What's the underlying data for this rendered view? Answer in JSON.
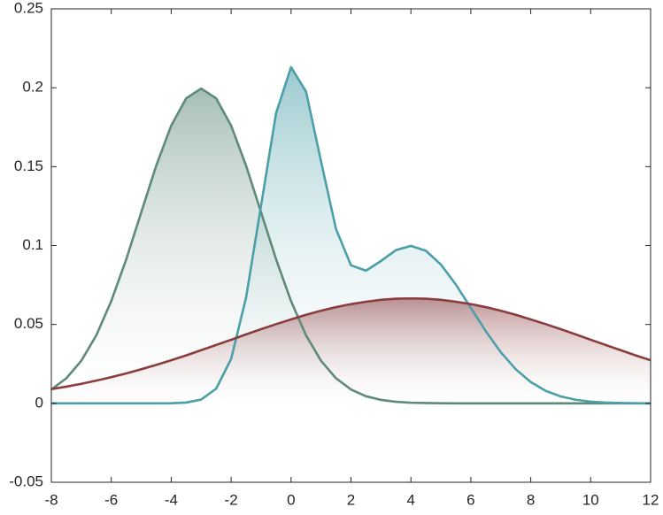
{
  "chart_data": {
    "type": "area",
    "x": [
      -8,
      -7.5,
      -7,
      -6.5,
      -6,
      -5.5,
      -5,
      -4.5,
      -4,
      -3.5,
      -3,
      -2.5,
      -2,
      -1.5,
      -1,
      -0.5,
      0,
      0.5,
      1,
      1.5,
      2,
      2.5,
      3,
      3.5,
      4,
      4.5,
      5,
      5.5,
      6,
      6.5,
      7,
      7.5,
      8,
      8.5,
      9,
      9.5,
      10,
      10.5,
      11,
      11.5,
      12
    ],
    "series": [
      {
        "color": "#5f8a78",
        "values": [
          0.0088,
          0.0159,
          0.027,
          0.0431,
          0.0648,
          0.0913,
          0.121,
          0.1506,
          0.176,
          0.1933,
          0.1995,
          0.1933,
          0.176,
          0.1506,
          0.121,
          0.0913,
          0.0648,
          0.0431,
          0.027,
          0.0159,
          0.0088,
          0.0045,
          0.0022,
          0.001,
          0.0004,
          0.0002,
          0.0001,
          0,
          0,
          0,
          0,
          0,
          0,
          0,
          0,
          0,
          0,
          0,
          0,
          0,
          0
        ]
      },
      {
        "color": "#4a9fa8",
        "values": [
          0,
          0,
          0,
          0,
          0,
          0,
          0,
          0,
          0.0001,
          0.0005,
          0.0024,
          0.0093,
          0.0281,
          0.0671,
          0.1254,
          0.1839,
          0.213,
          0.1976,
          0.1534,
          0.1105,
          0.0875,
          0.0841,
          0.0902,
          0.0971,
          0.0998,
          0.0967,
          0.088,
          0.0753,
          0.0605,
          0.0457,
          0.0324,
          0.0216,
          0.0135,
          0.0079,
          0.0044,
          0.0023,
          0.0011,
          0.0005,
          0.0002,
          0.0001,
          0
        ]
      },
      {
        "color": "#8b3c3e",
        "values": [
          0.009,
          0.0106,
          0.0124,
          0.0144,
          0.0166,
          0.019,
          0.0216,
          0.0244,
          0.0273,
          0.0304,
          0.0337,
          0.037,
          0.0403,
          0.0437,
          0.047,
          0.0502,
          0.0532,
          0.0561,
          0.0587,
          0.061,
          0.0629,
          0.0644,
          0.0656,
          0.0663,
          0.0665,
          0.0663,
          0.0656,
          0.0644,
          0.0629,
          0.061,
          0.0587,
          0.0561,
          0.0532,
          0.0502,
          0.047,
          0.0437,
          0.0403,
          0.037,
          0.0337,
          0.0304,
          0.0273
        ]
      }
    ],
    "xlim": [
      -8,
      12
    ],
    "xticks": [
      -8,
      -6,
      -4,
      -2,
      0,
      2,
      4,
      6,
      8,
      10,
      12
    ],
    "ylim": [
      -0.05,
      0.25
    ],
    "yticks": [
      -0.05,
      0,
      0.05,
      0.1,
      0.15,
      0.2,
      0.25
    ],
    "gradient_fill": true
  }
}
